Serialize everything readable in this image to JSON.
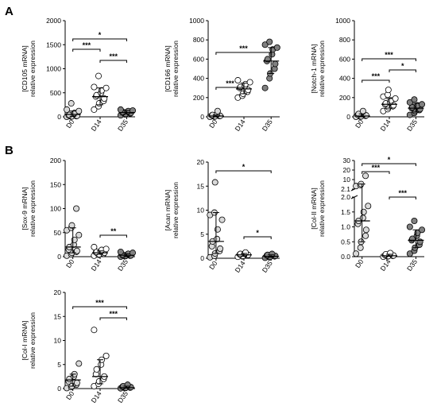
{
  "panels": {
    "A": "A",
    "B": "B"
  },
  "colors": {
    "D0": "#d9d9d9",
    "D14": "#ffffff",
    "D35": "#808080"
  },
  "chart_data": [
    {
      "type": "scatter",
      "id": "cd105",
      "panel": "A",
      "ylabel_lines": [
        "[CD105 mRNA]",
        "relative expression"
      ],
      "ylim": [
        0,
        2000
      ],
      "yticks": [
        "0",
        "500",
        "1000",
        "1500",
        "2000"
      ],
      "categories": [
        "D0",
        "D14",
        "D35"
      ],
      "series": [
        {
          "category": "D0",
          "values": [
            0,
            5,
            10,
            15,
            20,
            30,
            40,
            60,
            80,
            120,
            150,
            280
          ],
          "median": 50,
          "error": [
            10,
            120
          ]
        },
        {
          "category": "D14",
          "values": [
            150,
            220,
            280,
            330,
            380,
            420,
            450,
            500,
            550,
            600,
            620,
            850
          ],
          "median": 420,
          "error": [
            250,
            600
          ]
        },
        {
          "category": "D35",
          "values": [
            30,
            50,
            60,
            70,
            80,
            90,
            100,
            110,
            120,
            130,
            150
          ],
          "median": 90,
          "error": [
            60,
            130
          ]
        }
      ],
      "significance": [
        {
          "from": "D0",
          "to": "D35",
          "label": "*",
          "level": 3
        },
        {
          "from": "D0",
          "to": "D14",
          "label": "***",
          "level": 2
        },
        {
          "from": "D14",
          "to": "D35",
          "label": "***",
          "level": 1
        }
      ]
    },
    {
      "type": "scatter",
      "id": "cd166",
      "panel": "A",
      "ylabel_lines": [
        "[CD166 mRNA]",
        "relative expression"
      ],
      "ylim": [
        0,
        1000
      ],
      "yticks": [
        "0",
        "200",
        "400",
        "600",
        "800",
        "1000"
      ],
      "categories": [
        "D0",
        "D14",
        "D35"
      ],
      "series": [
        {
          "category": "D0",
          "values": [
            0,
            2,
            5,
            8,
            10,
            15,
            20,
            25,
            60
          ],
          "median": 8,
          "error": [
            0,
            20
          ]
        },
        {
          "category": "D14",
          "values": [
            200,
            220,
            240,
            260,
            280,
            300,
            310,
            320,
            340,
            360,
            380
          ],
          "median": 290,
          "error": [
            240,
            350
          ]
        },
        {
          "category": "D35",
          "values": [
            300,
            400,
            450,
            500,
            550,
            580,
            600,
            650,
            700,
            720,
            750,
            780
          ],
          "median": 580,
          "error": [
            450,
            720
          ]
        }
      ],
      "significance": [
        {
          "from": "D0",
          "to": "D35",
          "label": "***",
          "level": 3
        },
        {
          "from": "D0",
          "to": "D14",
          "label": "***",
          "level": 1
        }
      ]
    },
    {
      "type": "scatter",
      "id": "notch1",
      "panel": "A",
      "ylabel_lines": [
        "[Notch-1 mRNA]",
        "relative expression"
      ],
      "ylim": [
        0,
        1000
      ],
      "yticks": [
        "0",
        "200",
        "400",
        "600",
        "800",
        "1000"
      ],
      "categories": [
        "D0",
        "D14",
        "D35"
      ],
      "series": [
        {
          "category": "D0",
          "values": [
            0,
            2,
            5,
            10,
            15,
            20,
            30,
            60
          ],
          "median": 8,
          "error": [
            0,
            30
          ]
        },
        {
          "category": "D14",
          "values": [
            60,
            80,
            100,
            110,
            120,
            130,
            140,
            150,
            170,
            190,
            210,
            230,
            280
          ],
          "median": 130,
          "error": [
            90,
            190
          ]
        },
        {
          "category": "D35",
          "values": [
            20,
            40,
            60,
            70,
            80,
            90,
            100,
            110,
            120,
            130,
            150,
            180
          ],
          "median": 90,
          "error": [
            50,
            140
          ]
        }
      ],
      "significance": [
        {
          "from": "D0",
          "to": "D35",
          "label": "***",
          "level": 3
        },
        {
          "from": "D0",
          "to": "D14",
          "label": "***",
          "level": 2
        },
        {
          "from": "D14",
          "to": "D35",
          "label": "*",
          "level": 1
        }
      ]
    },
    {
      "type": "scatter",
      "id": "sox9",
      "panel": "B",
      "ylabel_lines": [
        "[Sox-9 mRNA]",
        "relative expression"
      ],
      "ylim": [
        0,
        200
      ],
      "yticks": [
        "0",
        "50",
        "100",
        "150",
        "200"
      ],
      "categories": [
        "D0",
        "D14",
        "D35"
      ],
      "series": [
        {
          "category": "D0",
          "values": [
            2,
            5,
            8,
            10,
            12,
            15,
            20,
            25,
            35,
            45,
            55,
            60,
            65,
            100
          ],
          "median": 20,
          "error": [
            8,
            60
          ]
        },
        {
          "category": "D14",
          "values": [
            2,
            4,
            5,
            6,
            8,
            9,
            10,
            12,
            14,
            16,
            20
          ],
          "median": 8,
          "error": [
            5,
            12
          ]
        },
        {
          "category": "D35",
          "values": [
            0,
            1,
            1.5,
            2,
            2.5,
            3,
            4,
            5,
            6,
            8,
            10
          ],
          "median": 3,
          "error": [
            1,
            6
          ]
        }
      ],
      "significance": [
        {
          "from": "D14",
          "to": "D35",
          "label": "**",
          "level": 1
        }
      ]
    },
    {
      "type": "scatter",
      "id": "acan",
      "panel": "B",
      "ylabel_lines": [
        "[Acan mRNA]",
        "relative expression"
      ],
      "ylim": [
        0,
        20
      ],
      "yticks": [
        "0",
        "5",
        "10",
        "15",
        "20"
      ],
      "categories": [
        "D0",
        "D14",
        "D35"
      ],
      "series": [
        {
          "category": "D0",
          "values": [
            0.2,
            0.5,
            1,
            1.5,
            2,
            2.5,
            3.5,
            4,
            6,
            8,
            9,
            9.5,
            15.8
          ],
          "median": 3.5,
          "error": [
            1,
            9.5
          ]
        },
        {
          "category": "D14",
          "values": [
            0.3,
            0.4,
            0.5,
            0.6,
            0.7,
            0.8,
            0.9,
            1,
            1.2
          ],
          "median": 0.7,
          "error": [
            0.4,
            1
          ]
        },
        {
          "category": "D35",
          "values": [
            0.1,
            0.2,
            0.3,
            0.4,
            0.5,
            0.6,
            0.7,
            0.9
          ],
          "median": 0.4,
          "error": [
            0.2,
            0.7
          ]
        }
      ],
      "significance": [
        {
          "from": "D0",
          "to": "D35",
          "label": "*",
          "level": 3
        },
        {
          "from": "D14",
          "to": "D35",
          "label": "*",
          "level": 1
        }
      ]
    },
    {
      "type": "scatter",
      "id": "col2",
      "panel": "B",
      "broken_axis": true,
      "ylabel_lines": [
        "[Col-II mRNA]",
        "relative expression"
      ],
      "ylim_low": [
        0,
        2
      ],
      "ylim_high": [
        2,
        30
      ],
      "yticks_low": [
        "0.0",
        "0.5",
        "1.0",
        "1.5",
        "2.0"
      ],
      "yticks_high": [
        "2.1",
        "10",
        "20",
        "30"
      ],
      "categories": [
        "D0",
        "D14",
        "D35"
      ],
      "series": [
        {
          "category": "D0",
          "values": [
            0.1,
            0.3,
            0.5,
            0.7,
            0.9,
            1.1,
            1.2,
            1.3,
            1.5,
            1.7,
            5,
            6,
            7,
            15
          ],
          "median": 1.2,
          "error": [
            0.5,
            7
          ]
        },
        {
          "category": "D14",
          "values": [
            0,
            0.01,
            0.02,
            0.03,
            0.04,
            0.05,
            0.08,
            0.12
          ],
          "median": 0.03,
          "error": [
            0.01,
            0.08
          ]
        },
        {
          "category": "D35",
          "values": [
            0.1,
            0.2,
            0.3,
            0.4,
            0.5,
            0.55,
            0.6,
            0.7,
            0.8,
            0.9,
            1.0,
            1.2
          ],
          "median": 0.55,
          "error": [
            0.3,
            0.9
          ]
        }
      ],
      "significance": [
        {
          "from": "D0",
          "to": "D35",
          "label": "*",
          "level": 3
        },
        {
          "from": "D0",
          "to": "D14",
          "label": "***",
          "level": 2
        },
        {
          "from": "D14",
          "to": "D35",
          "label": "***",
          "level": 1
        }
      ]
    },
    {
      "type": "scatter",
      "id": "col1",
      "panel": "B",
      "ylabel_lines": [
        "[Col-I mRNA]",
        "relative expression"
      ],
      "ylim": [
        0,
        20
      ],
      "yticks": [
        "0",
        "5",
        "10",
        "15",
        "20"
      ],
      "categories": [
        "D0",
        "D14",
        "D35"
      ],
      "series": [
        {
          "category": "D0",
          "values": [
            0.1,
            0.3,
            0.5,
            0.8,
            1.2,
            1.5,
            2,
            2.5,
            3,
            5.2
          ],
          "median": 1.8,
          "error": [
            0.5,
            3
          ]
        },
        {
          "category": "D14",
          "values": [
            0.5,
            1,
            1.5,
            2,
            2.5,
            3,
            4,
            5,
            6,
            6.8,
            12.2
          ],
          "median": 2.5,
          "error": [
            1,
            6
          ]
        },
        {
          "category": "D35",
          "values": [
            0.05,
            0.1,
            0.15,
            0.2,
            0.3,
            0.4,
            0.5,
            0.8
          ],
          "median": 0.2,
          "error": [
            0.1,
            0.5
          ]
        }
      ],
      "significance": [
        {
          "from": "D0",
          "to": "D35",
          "label": "***",
          "level": 3
        },
        {
          "from": "D14",
          "to": "D35",
          "label": "***",
          "level": 1
        }
      ]
    }
  ]
}
